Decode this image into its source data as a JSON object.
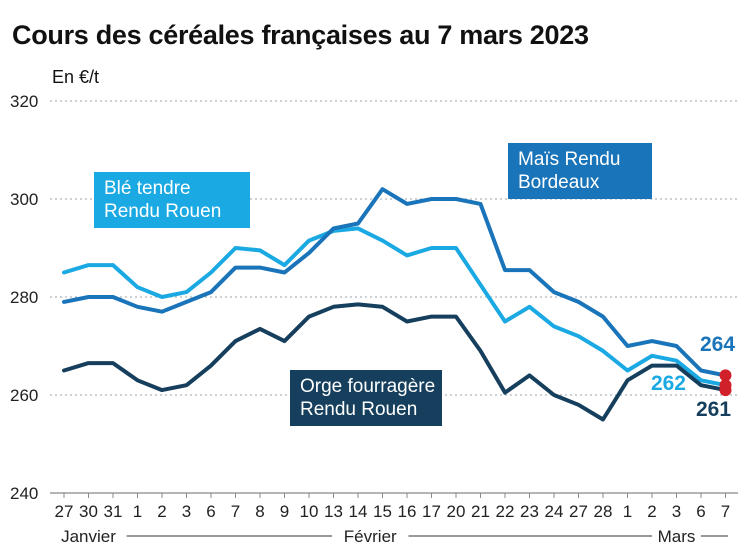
{
  "title": "Cours des céréales françaises au 7 mars 2023",
  "chart_data": {
    "type": "line",
    "title": "Cours des céréales françaises au 7 mars 2023",
    "unit_label": "En €/t",
    "ylim": [
      240,
      320
    ],
    "y_ticks": [
      "240",
      "260",
      "280",
      "300",
      "320"
    ],
    "grid": true,
    "categories": [
      "27",
      "30",
      "31",
      "1",
      "2",
      "3",
      "6",
      "7",
      "8",
      "9",
      "10",
      "13",
      "14",
      "15",
      "16",
      "17",
      "20",
      "21",
      "22",
      "23",
      "24",
      "27",
      "28",
      "1",
      "2",
      "3",
      "6",
      "7"
    ],
    "months": [
      {
        "label": "Janvier",
        "start": 0,
        "end": 2
      },
      {
        "label": "Février",
        "start": 3,
        "end": 22
      },
      {
        "label": "Mars",
        "start": 23,
        "end": 27
      }
    ],
    "series": [
      {
        "name": "Blé tendre Rendu Rouen",
        "label_lines": [
          "Blé tendre",
          "Rendu Rouen"
        ],
        "color": "#1ba9e3",
        "end_label": "262",
        "values": [
          285,
          286.5,
          286.5,
          282,
          280,
          281,
          285,
          290,
          289.5,
          286.5,
          291.5,
          293.5,
          294,
          291.5,
          288.5,
          290,
          290,
          282.5,
          275,
          278,
          274,
          272,
          269,
          265,
          268,
          267,
          263,
          262
        ]
      },
      {
        "name": "Maïs Rendu Bordeaux",
        "label_lines": [
          "Maïs Rendu",
          "Bordeaux"
        ],
        "color": "#1a74b9",
        "end_label": "264",
        "values": [
          279,
          280,
          280,
          278,
          277,
          279,
          281,
          286,
          286,
          285,
          289,
          294,
          295,
          302,
          299,
          300,
          300,
          299,
          285.5,
          285.5,
          281,
          279,
          276,
          270,
          271,
          270,
          265,
          264
        ]
      },
      {
        "name": "Orge fourragère Rendu Rouen",
        "label_lines": [
          "Orge fourragère",
          "Rendu Rouen"
        ],
        "color": "#163f5d",
        "end_label": "261",
        "values": [
          265,
          266.5,
          266.5,
          263,
          261,
          262,
          266,
          271,
          273.5,
          271,
          276,
          278,
          278.5,
          278,
          275,
          276,
          276,
          269,
          260.5,
          264,
          260,
          258,
          255,
          263,
          266,
          266,
          262,
          261
        ]
      }
    ]
  }
}
